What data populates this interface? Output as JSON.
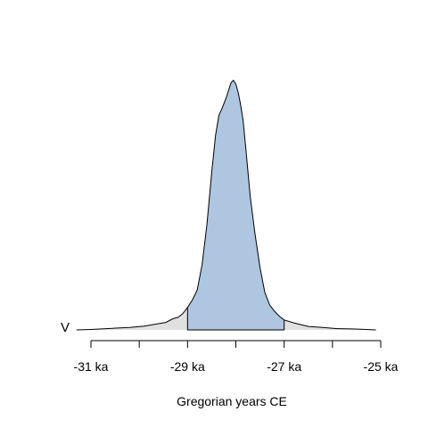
{
  "chart_data": {
    "type": "area",
    "xlabel": "Gregorian years CE",
    "ylabel": "",
    "row_label": "V",
    "x_unit": "ka",
    "xlim": [
      -31.0,
      -24.9
    ],
    "x_ticks": [
      -31,
      -30,
      -29,
      -28,
      -27,
      -26,
      -25
    ],
    "x_tick_labels": [
      "-31 ka",
      "",
      "-29 ka",
      "",
      "-27 ka",
      "",
      "-25 ka"
    ],
    "hpd_interval": [
      -29.0,
      -27.0
    ],
    "density_x": [
      -31.3,
      -31.0,
      -30.6,
      -30.2,
      -29.9,
      -29.6,
      -29.45,
      -29.3,
      -29.2,
      -29.1,
      -29.0,
      -28.9,
      -28.8,
      -28.7,
      -28.6,
      -28.5,
      -28.42,
      -28.35,
      -28.28,
      -28.2,
      -28.15,
      -28.1,
      -28.05,
      -28.0,
      -27.95,
      -27.9,
      -27.85,
      -27.8,
      -27.7,
      -27.6,
      -27.5,
      -27.4,
      -27.3,
      -27.2,
      -27.1,
      -27.0,
      -26.8,
      -26.5,
      -26.2,
      -25.9,
      -25.6,
      -25.3,
      -25.1
    ],
    "density_y": [
      0.0,
      0.002,
      0.006,
      0.01,
      0.015,
      0.025,
      0.03,
      0.045,
      0.05,
      0.065,
      0.09,
      0.12,
      0.16,
      0.26,
      0.42,
      0.63,
      0.78,
      0.86,
      0.89,
      0.93,
      0.96,
      0.99,
      1.0,
      0.985,
      0.95,
      0.9,
      0.84,
      0.74,
      0.53,
      0.38,
      0.25,
      0.15,
      0.1,
      0.075,
      0.055,
      0.04,
      0.028,
      0.014,
      0.01,
      0.005,
      0.004,
      0.002,
      0.0
    ],
    "colors": {
      "hpd_fill": "#aec6e0",
      "tail_fill": "#e0e0e0",
      "line": "#000000"
    }
  }
}
